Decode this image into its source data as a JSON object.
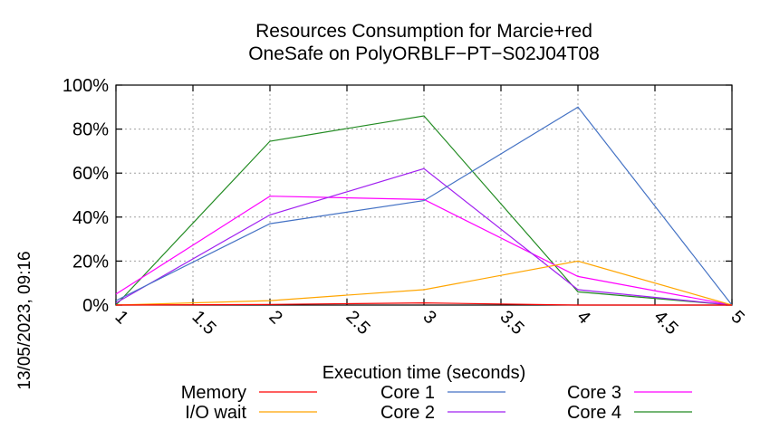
{
  "timestamp": "13/05/2023, 09:16",
  "chart_data": {
    "type": "line",
    "title": [
      "Resources Consumption for Marcie+red",
      "OneSafe on PolyORBLF−PT−S02J04T08"
    ],
    "xlabel": "Execution time (seconds)",
    "ylabel": "",
    "xlim": [
      1,
      5
    ],
    "ylim": [
      0,
      100
    ],
    "x_ticks": [
      {
        "value": 1,
        "label": "1"
      },
      {
        "value": 1.5,
        "label": "1.5"
      },
      {
        "value": 2,
        "label": "2"
      },
      {
        "value": 2.5,
        "label": "2.5"
      },
      {
        "value": 3,
        "label": "3"
      },
      {
        "value": 3.5,
        "label": "3.5"
      },
      {
        "value": 4,
        "label": "4"
      },
      {
        "value": 4.5,
        "label": "4.5"
      },
      {
        "value": 5,
        "label": "5"
      }
    ],
    "y_ticks": [
      {
        "value": 0,
        "label": "0%"
      },
      {
        "value": 20,
        "label": "20%"
      },
      {
        "value": 40,
        "label": "40%"
      },
      {
        "value": 60,
        "label": "60%"
      },
      {
        "value": 80,
        "label": "80%"
      },
      {
        "value": 100,
        "label": "100%"
      }
    ],
    "grid": true,
    "legend_position": "bottom",
    "x": [
      1,
      2,
      3,
      4,
      5
    ],
    "series": [
      {
        "name": "Memory",
        "color": "#ff0000",
        "values": [
          0,
          0.3,
          1,
          0,
          0
        ]
      },
      {
        "name": "I/O wait",
        "color": "#ffa500",
        "values": [
          0,
          2,
          7,
          20,
          0
        ]
      },
      {
        "name": "Core 1",
        "color": "#4472c4",
        "values": [
          2,
          37,
          47.5,
          90,
          0
        ]
      },
      {
        "name": "Core 2",
        "color": "#a020f0",
        "values": [
          1,
          41,
          62,
          7,
          0
        ]
      },
      {
        "name": "Core 3",
        "color": "#ff00ff",
        "values": [
          5,
          49.5,
          48,
          13,
          0
        ]
      },
      {
        "name": "Core 4",
        "color": "#228b22",
        "values": [
          0,
          74.5,
          86,
          6,
          0
        ]
      }
    ]
  }
}
